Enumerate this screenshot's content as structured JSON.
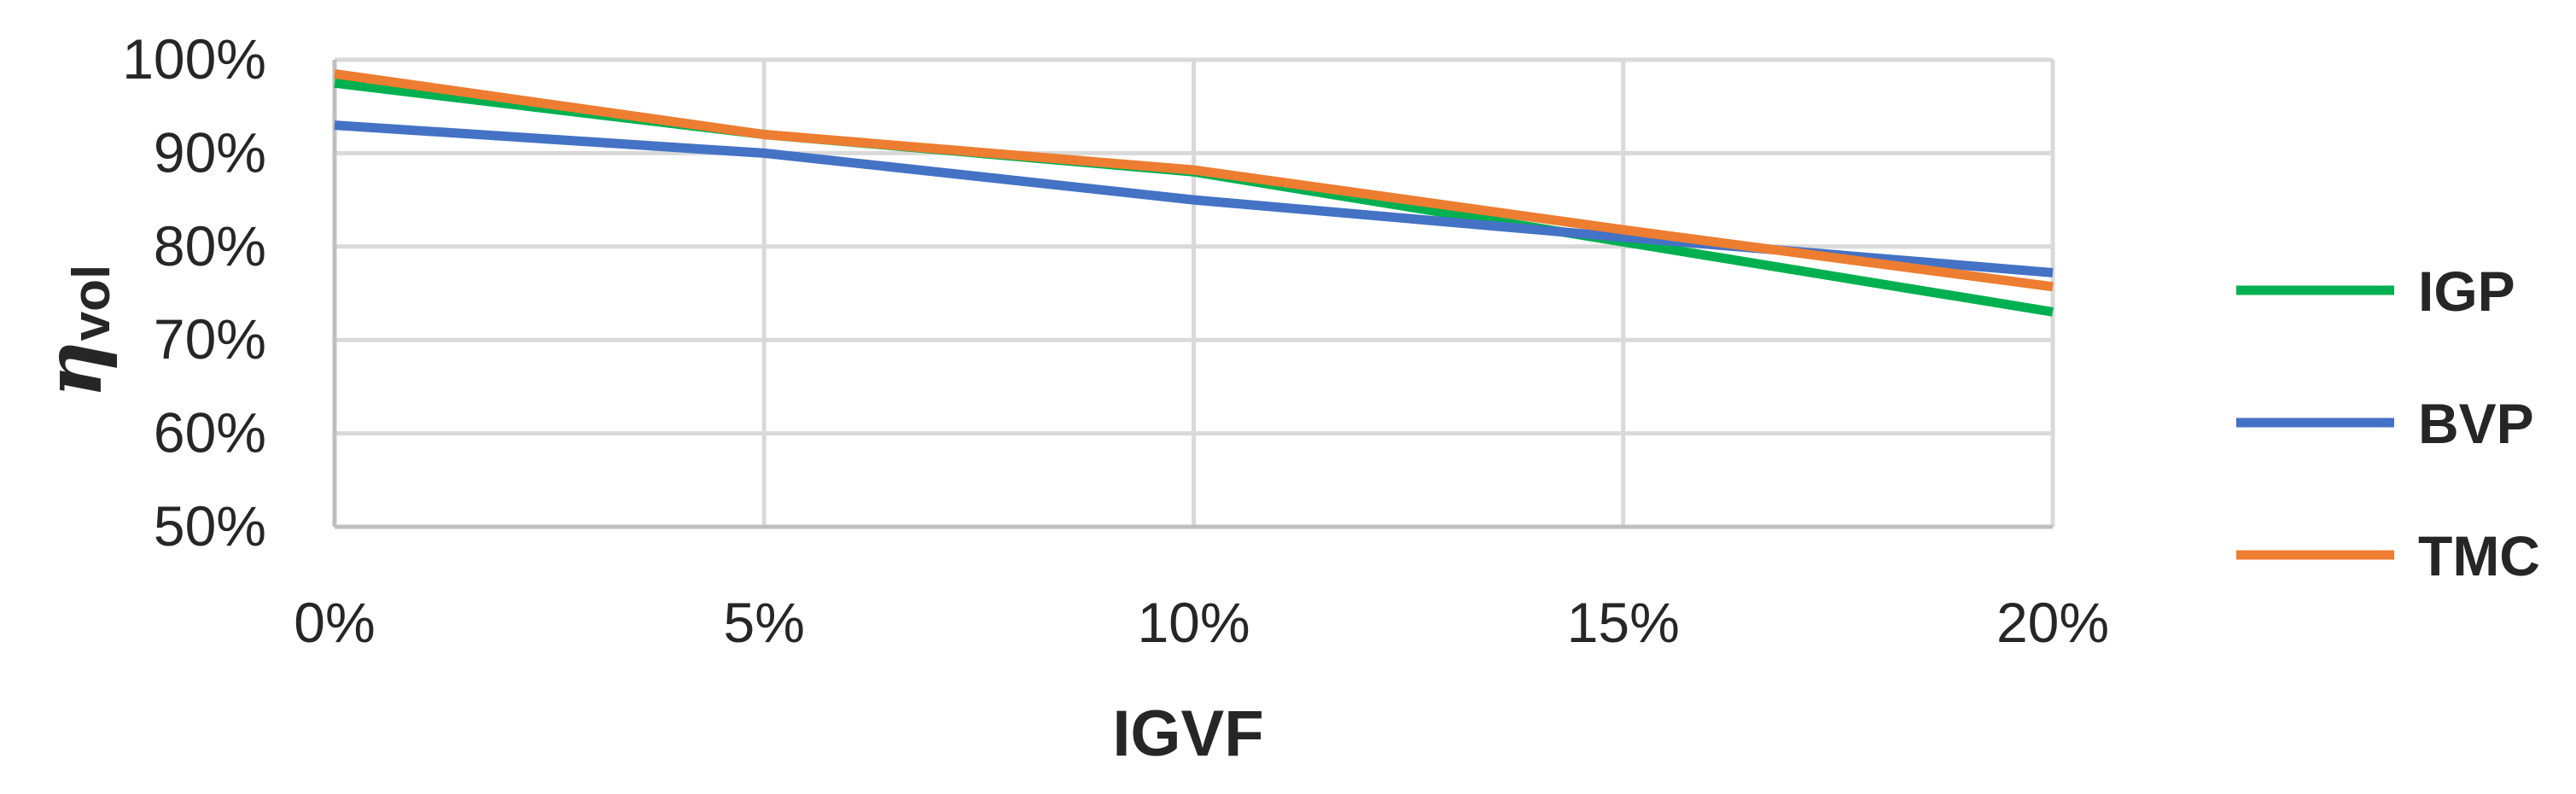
{
  "chart_data": {
    "type": "line",
    "title": "",
    "xlabel": "IGVF",
    "ylabel": {
      "symbol": "η",
      "subscript": "vol"
    },
    "x": [
      0,
      5,
      10,
      15,
      20
    ],
    "x_tick_labels": [
      "0%",
      "5%",
      "10%",
      "15%",
      "20%"
    ],
    "xlim": [
      0,
      20
    ],
    "ylim": [
      50,
      100
    ],
    "y_ticks": [
      50,
      60,
      70,
      80,
      90,
      100
    ],
    "y_tick_labels": [
      "50%",
      "60%",
      "70%",
      "80%",
      "90%",
      "100%"
    ],
    "grid": true,
    "legend_position": "right",
    "series": [
      {
        "name": "IGP",
        "color": "#00b050",
        "values": [
          97.5,
          92,
          88,
          80.5,
          73
        ]
      },
      {
        "name": "BVP",
        "color": "#4472c4",
        "values": [
          93,
          90,
          85,
          81,
          77.2
        ]
      },
      {
        "name": "TMC",
        "color": "#ed7d31",
        "values": [
          98.5,
          92,
          88.2,
          81.8,
          75.7
        ]
      }
    ]
  }
}
